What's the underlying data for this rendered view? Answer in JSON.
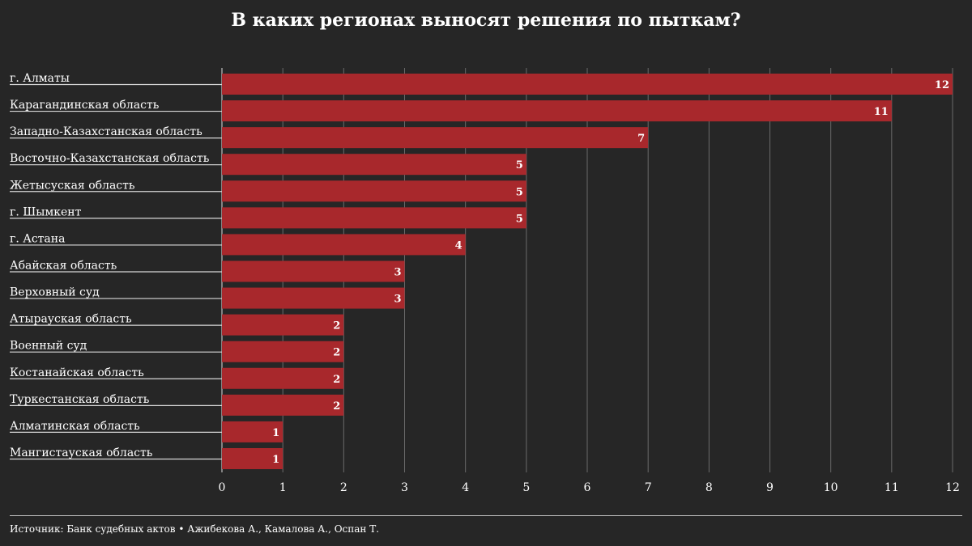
{
  "chart_data": {
    "type": "bar",
    "orientation": "horizontal",
    "title": "В каких регионах выносят решения по пыткам?",
    "categories": [
      "г. Алматы",
      "Карагандинская область",
      "Западно-Казахстанская область",
      "Восточно-Казахстанская область",
      "Жетысуская область",
      "г. Шымкент",
      "г. Астана",
      "Абайская область",
      "Верховный суд",
      "Атырауская область",
      "Военный суд",
      "Костанайская область",
      "Туркестанская область",
      "Алматинская область",
      "Мангистауская область"
    ],
    "values": [
      12,
      11,
      7,
      5,
      5,
      5,
      4,
      3,
      3,
      2,
      2,
      2,
      2,
      1,
      1
    ],
    "xlim": [
      0,
      12
    ],
    "xticks": [
      0,
      1,
      2,
      3,
      4,
      5,
      6,
      7,
      8,
      9,
      10,
      11,
      12
    ],
    "grid": true,
    "bar_color": "#a8282c"
  },
  "source_text": "Источник: Банк судебных актов • Ажибекова А., Камалова А., Оспан Т."
}
